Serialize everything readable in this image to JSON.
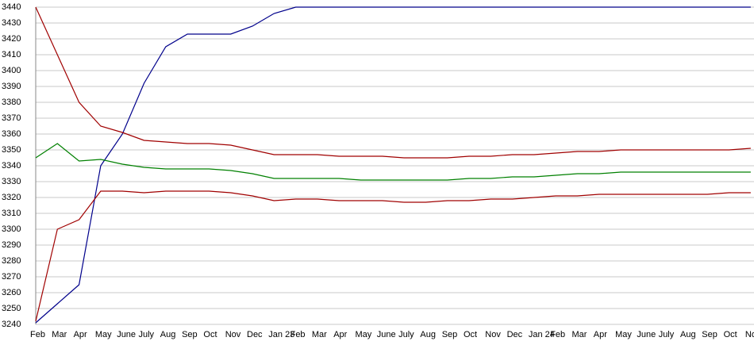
{
  "chart_data": {
    "type": "line",
    "categories": [
      "Feb",
      "Mar",
      "Apr",
      "May",
      "June",
      "July",
      "Aug",
      "Sep",
      "Oct",
      "Nov",
      "Dec",
      "Jan 23",
      "Feb",
      "Mar",
      "Apr",
      "May",
      "June",
      "July",
      "Aug",
      "Sep",
      "Oct",
      "Nov",
      "Dec",
      "Jan 24",
      "Feb",
      "Mar",
      "Apr",
      "May",
      "June",
      "July",
      "Aug",
      "Sep",
      "Oct",
      "Nov"
    ],
    "series": [
      {
        "color": "#00008b",
        "values": [
          3241,
          3253,
          3265,
          3340,
          3360,
          3392,
          3415,
          3423,
          3423,
          3423,
          3428,
          3436,
          3440,
          3440,
          3440,
          3440,
          3440,
          3440,
          3440,
          3440,
          3440,
          3440,
          3440,
          3440,
          3440,
          3440,
          3440,
          3440,
          3440,
          3440,
          3440,
          3440,
          3440,
          3440
        ]
      },
      {
        "color": "#a00000",
        "values": [
          3440,
          3410,
          3380,
          3365,
          3361,
          3356,
          3355,
          3354,
          3354,
          3353,
          3350,
          3347,
          3347,
          3347,
          3346,
          3346,
          3346,
          3345,
          3345,
          3345,
          3346,
          3346,
          3347,
          3347,
          3348,
          3349,
          3349,
          3350,
          3350,
          3350,
          3350,
          3350,
          3350,
          3351
        ]
      },
      {
        "color": "#008000",
        "values": [
          3345,
          3354,
          3343,
          3344,
          3341,
          3339,
          3338,
          3338,
          3338,
          3337,
          3335,
          3332,
          3332,
          3332,
          3332,
          3331,
          3331,
          3331,
          3331,
          3331,
          3332,
          3332,
          3333,
          3333,
          3334,
          3335,
          3335,
          3336,
          3336,
          3336,
          3336,
          3336,
          3336,
          3336
        ]
      },
      {
        "color": "#a00000",
        "values": [
          3242,
          3300,
          3306,
          3324,
          3324,
          3323,
          3324,
          3324,
          3324,
          3323,
          3321,
          3318,
          3319,
          3319,
          3318,
          3318,
          3318,
          3317,
          3317,
          3318,
          3318,
          3319,
          3319,
          3320,
          3321,
          3321,
          3322,
          3322,
          3322,
          3322,
          3322,
          3322,
          3323,
          3323
        ]
      }
    ],
    "ylim": [
      3240,
      3440
    ],
    "yticks": [
      3240,
      3250,
      3260,
      3270,
      3280,
      3290,
      3300,
      3310,
      3320,
      3330,
      3340,
      3350,
      3360,
      3370,
      3380,
      3390,
      3400,
      3410,
      3420,
      3430,
      3440
    ],
    "grid": true
  }
}
